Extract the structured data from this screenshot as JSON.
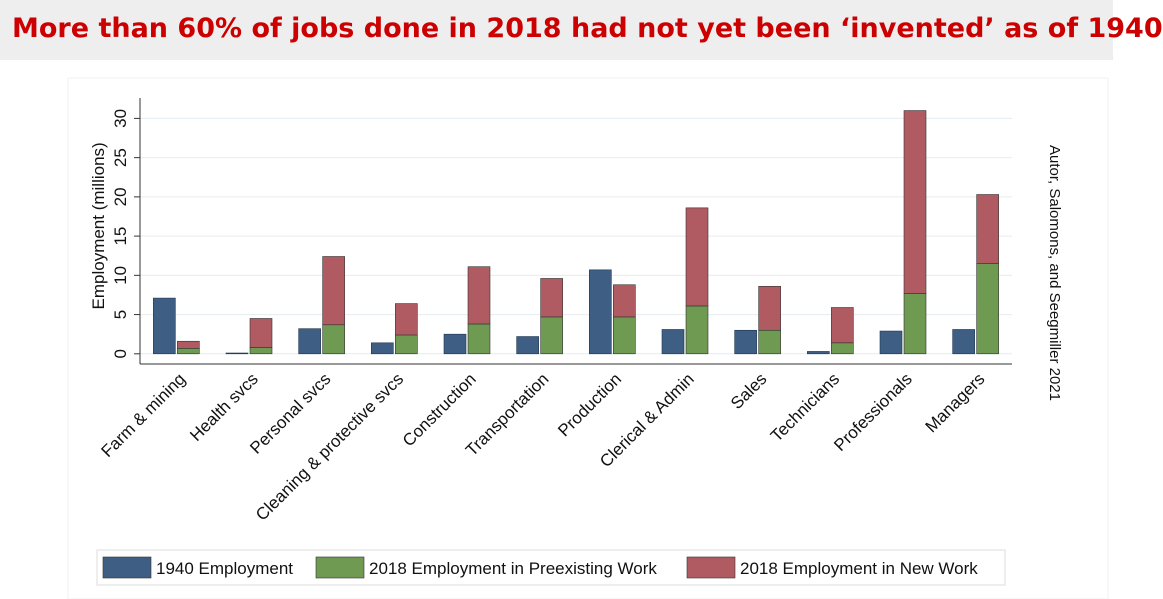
{
  "chart_data": {
    "type": "bar",
    "stacked_pairs": true,
    "title": "More than 60% of jobs done in 2018 had not yet been ‘invented’ as of 1940",
    "y_label": "Employment (millions)",
    "annotation": "Autor, Salomons, and Seegmiller 2021",
    "categories": [
      "Farm & mining",
      "Health svcs",
      "Personal svcs",
      "Cleaning & protective svcs",
      "Construction",
      "Transportation",
      "Production",
      "Clerical & Admin",
      "Sales",
      "Technicians",
      "Professionals",
      "Managers"
    ],
    "series": [
      {
        "name": "1940 Employment",
        "color": "#3e5f83",
        "values": [
          7.1,
          0.1,
          3.2,
          1.4,
          2.5,
          2.2,
          10.7,
          3.1,
          3.0,
          0.3,
          2.9,
          3.1
        ]
      },
      {
        "name": "2018 Employment in Preexisting Work",
        "color": "#6e9a52",
        "values": [
          0.7,
          0.8,
          3.7,
          2.4,
          3.8,
          4.7,
          4.7,
          6.1,
          3.0,
          1.4,
          7.7,
          11.5
        ]
      },
      {
        "name": "2018 Employment in New Work",
        "color": "#b05a62",
        "values": [
          0.9,
          3.7,
          8.7,
          4.0,
          7.3,
          4.9,
          4.1,
          12.5,
          5.6,
          4.5,
          23.3,
          8.8
        ]
      }
    ],
    "ylim": [
      -1.3,
      32.6
    ],
    "yticks": [
      0,
      5,
      10,
      15,
      20,
      25,
      30
    ],
    "grid": true
  }
}
